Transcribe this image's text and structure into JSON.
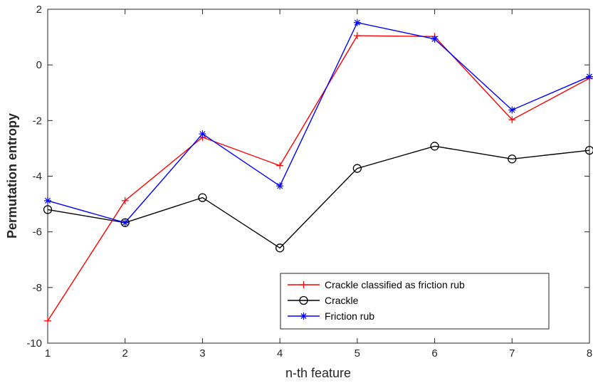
{
  "chart_data": {
    "type": "line",
    "title": "",
    "xlabel": "n-th feature",
    "ylabel": "Permutation entropy",
    "x": [
      1,
      2,
      3,
      4,
      5,
      6,
      7,
      8
    ],
    "xlim": [
      1,
      8
    ],
    "ylim": [
      -10,
      2
    ],
    "xticks": [
      "1",
      "2",
      "3",
      "4",
      "5",
      "6",
      "7",
      "8"
    ],
    "yticks": [
      "-10",
      "-8",
      "-6",
      "-4",
      "-2",
      "0",
      "2"
    ],
    "grid": false,
    "legend_position": "bottom-right",
    "series": [
      {
        "name": "Crackle classified as friction rub",
        "color": "#ff0000",
        "marker": "plus",
        "values": [
          -9.2,
          -4.88,
          -2.6,
          -3.62,
          1.05,
          1.02,
          -1.97,
          -0.48
        ]
      },
      {
        "name": "Crackle",
        "color": "#000000",
        "marker": "circle",
        "values": [
          -5.2,
          -5.67,
          -4.77,
          -6.58,
          -3.72,
          -2.92,
          -3.38,
          -3.07
        ]
      },
      {
        "name": "Friction rub",
        "color": "#0000ff",
        "marker": "asterisk",
        "values": [
          -4.88,
          -5.67,
          -2.48,
          -4.35,
          1.52,
          0.93,
          -1.62,
          -0.42
        ]
      }
    ]
  }
}
